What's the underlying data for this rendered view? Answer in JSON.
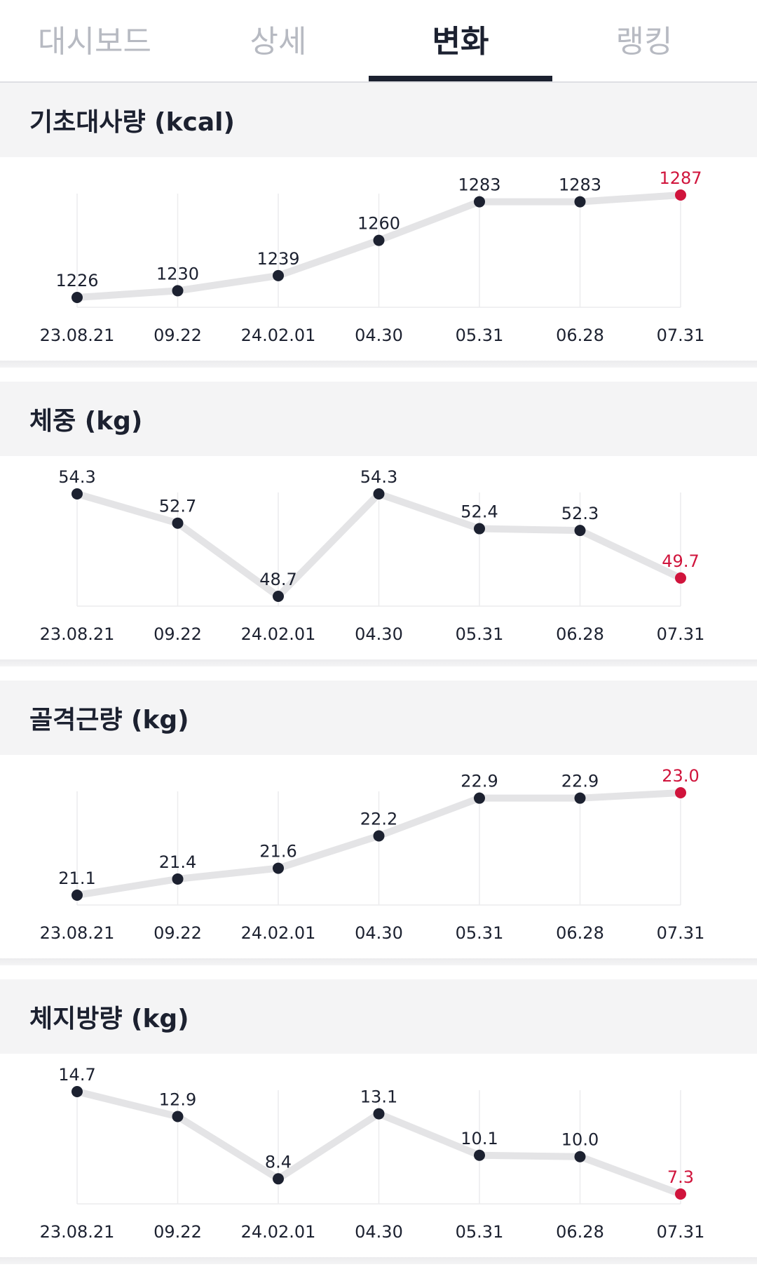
{
  "tabs": [
    {
      "label": "대시보드",
      "active": false
    },
    {
      "label": "상세",
      "active": false
    },
    {
      "label": "변화",
      "active": true
    },
    {
      "label": "랭킹",
      "active": false
    }
  ],
  "colors": {
    "point": "#1c2130",
    "latest_point": "#d0143c",
    "line": "#e4e4e6",
    "grid": "#ececee"
  },
  "chart_data": [
    {
      "type": "line",
      "title": "기초대사량 (kcal)",
      "categories": [
        "23.08.21",
        "09.22",
        "24.02.01",
        "04.30",
        "05.31",
        "06.28",
        "07.31"
      ],
      "values": [
        1226,
        1230,
        1239,
        1260,
        1283,
        1283,
        1287
      ],
      "value_labels": [
        "1226",
        "1230",
        "1239",
        "1260",
        "1283",
        "1283",
        "1287"
      ],
      "highlight_last": true
    },
    {
      "type": "line",
      "title": "체중 (kg)",
      "categories": [
        "23.08.21",
        "09.22",
        "24.02.01",
        "04.30",
        "05.31",
        "06.28",
        "07.31"
      ],
      "values": [
        54.3,
        52.7,
        48.7,
        54.3,
        52.4,
        52.3,
        49.7
      ],
      "value_labels": [
        "54.3",
        "52.7",
        "48.7",
        "54.3",
        "52.4",
        "52.3",
        "49.7"
      ],
      "highlight_last": true
    },
    {
      "type": "line",
      "title": "골격근량 (kg)",
      "categories": [
        "23.08.21",
        "09.22",
        "24.02.01",
        "04.30",
        "05.31",
        "06.28",
        "07.31"
      ],
      "values": [
        21.1,
        21.4,
        21.6,
        22.2,
        22.9,
        22.9,
        23.0
      ],
      "value_labels": [
        "21.1",
        "21.4",
        "21.6",
        "22.2",
        "22.9",
        "22.9",
        "23.0"
      ],
      "highlight_last": true
    },
    {
      "type": "line",
      "title": "체지방량 (kg)",
      "categories": [
        "23.08.21",
        "09.22",
        "24.02.01",
        "04.30",
        "05.31",
        "06.28",
        "07.31"
      ],
      "values": [
        14.7,
        12.9,
        8.4,
        13.1,
        10.1,
        10.0,
        7.3
      ],
      "value_labels": [
        "14.7",
        "12.9",
        "8.4",
        "13.1",
        "10.1",
        "10.0",
        "7.3"
      ],
      "highlight_last": true
    }
  ]
}
